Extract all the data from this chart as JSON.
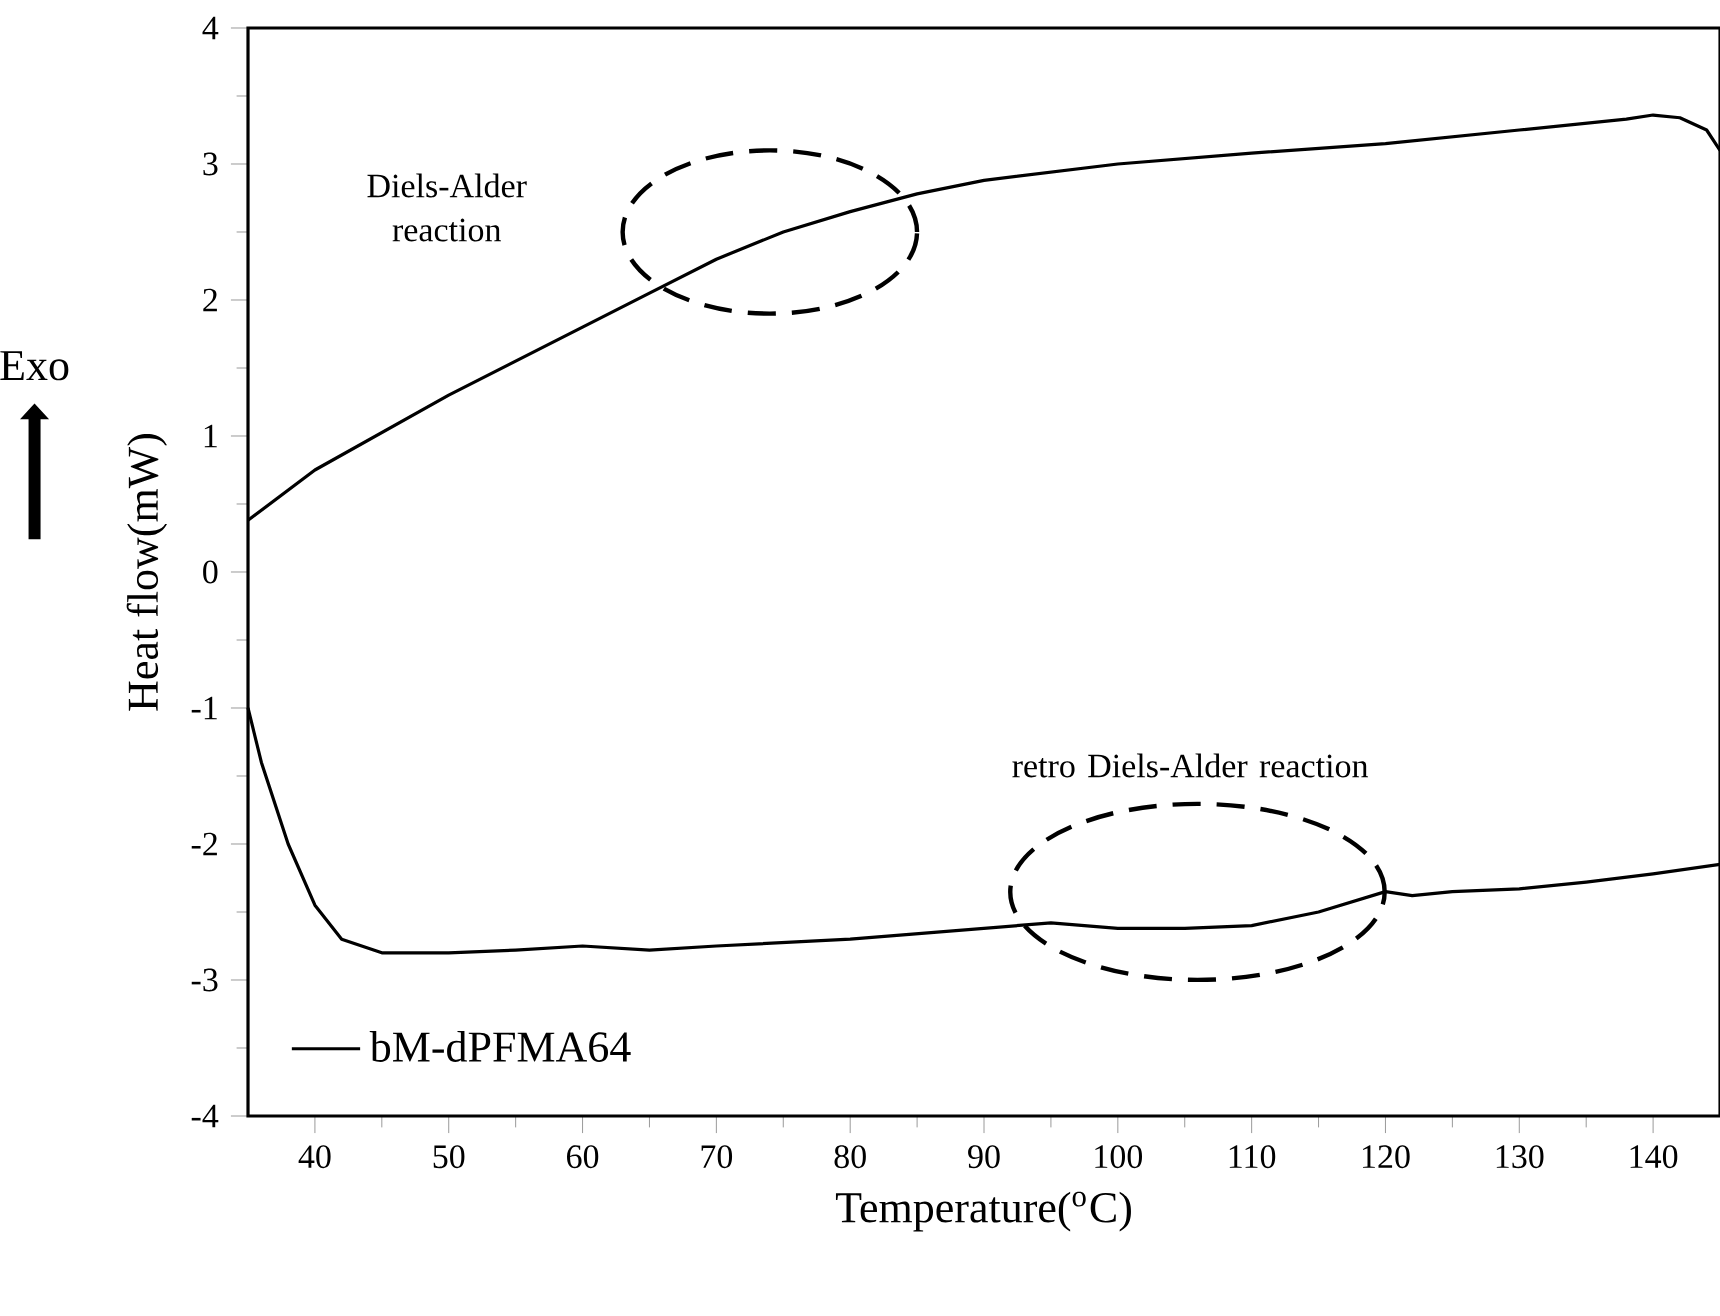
{
  "chart_data": {
    "type": "line",
    "xlabel": "Temperature($^{o}$C)",
    "ylabel": "Heat flow(mW)",
    "xlim": [
      35,
      145
    ],
    "ylim": [
      -4,
      4
    ],
    "xticks": [
      40,
      50,
      60,
      70,
      80,
      90,
      100,
      110,
      120,
      130,
      140
    ],
    "yticks": [
      -4,
      -3,
      -2,
      -1,
      0,
      1,
      2,
      3,
      4
    ],
    "legend": "bottom left",
    "marker": "none",
    "line_style": "solid",
    "series": [
      {
        "color": "#000000",
        "x": [
          35,
          40,
          50,
          60,
          65,
          70,
          75,
          80,
          85,
          90,
          100,
          110,
          120,
          130,
          138,
          140,
          142,
          144,
          145
        ],
        "values": [
          0.38,
          0.75,
          1.3,
          1.8,
          2.05,
          2.3,
          2.5,
          2.65,
          2.78,
          2.88,
          3.0,
          3.08,
          3.15,
          3.25,
          3.33,
          3.36,
          3.34,
          3.25,
          3.1
        ]
      },
      {
        "name": "bM-dPFMA64",
        "color": "#000000",
        "x": [
          35,
          36,
          38,
          40,
          42,
          45,
          50,
          55,
          60,
          65,
          70,
          80,
          90,
          95,
          100,
          105,
          110,
          115,
          120,
          122,
          125,
          130,
          135,
          140,
          145
        ],
        "values": [
          -1.0,
          -1.4,
          -2.0,
          -2.45,
          -2.7,
          -2.8,
          -2.8,
          -2.78,
          -2.75,
          -2.78,
          -2.75,
          -2.7,
          -2.62,
          -2.58,
          -2.62,
          -2.62,
          -2.6,
          -2.5,
          -2.35,
          -2.38,
          -2.35,
          -2.33,
          -2.28,
          -2.22,
          -2.15
        ]
      }
    ],
    "annotations": [
      "Exo",
      "Diels-Alder reaction",
      "retro Diels-Alder reaction"
    ]
  }
}
